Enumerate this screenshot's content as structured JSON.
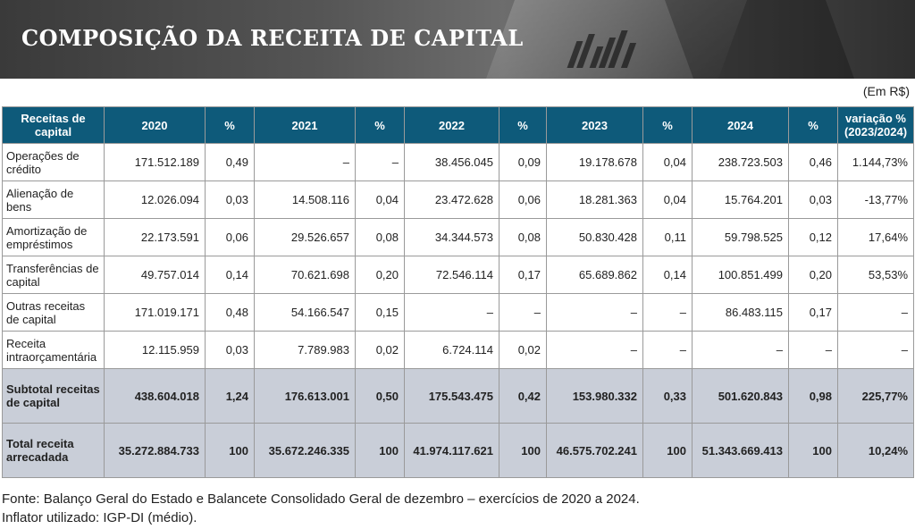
{
  "title": "COMPOSIÇÃO DA RECEITA DE CAPITAL",
  "unit": "(Em R$)",
  "headers": [
    "Receitas de capital",
    "2020",
    "%",
    "2021",
    "%",
    "2022",
    "%",
    "2023",
    "%",
    "2024",
    "%",
    "variação % (2023/2024)"
  ],
  "rows": [
    {
      "label": "Operações de crédito",
      "values": [
        "171.512.189",
        "0,49",
        "–",
        "–",
        "38.456.045",
        "0,09",
        "19.178.678",
        "0,04",
        "238.723.503",
        "0,46",
        "1.144,73%"
      ]
    },
    {
      "label": "Alienação de bens",
      "values": [
        "12.026.094",
        "0,03",
        "14.508.116",
        "0,04",
        "23.472.628",
        "0,06",
        "18.281.363",
        "0,04",
        "15.764.201",
        "0,03",
        "-13,77%"
      ]
    },
    {
      "label": "Amortização de empréstimos",
      "values": [
        "22.173.591",
        "0,06",
        "29.526.657",
        "0,08",
        "34.344.573",
        "0,08",
        "50.830.428",
        "0,11",
        "59.798.525",
        "0,12",
        "17,64%"
      ]
    },
    {
      "label": "Transferências de capital",
      "values": [
        "49.757.014",
        "0,14",
        "70.621.698",
        "0,20",
        "72.546.114",
        "0,17",
        "65.689.862",
        "0,14",
        "100.851.499",
        "0,20",
        "53,53%"
      ]
    },
    {
      "label": "Outras receitas de capital",
      "values": [
        "171.019.171",
        "0,48",
        "54.166.547",
        "0,15",
        "–",
        "–",
        "–",
        "–",
        "86.483.115",
        "0,17",
        "–"
      ]
    },
    {
      "label": "Receita intraorçamentária",
      "values": [
        "12.115.959",
        "0,03",
        "7.789.983",
        "0,02",
        "6.724.114",
        "0,02",
        "–",
        "–",
        "–",
        "–",
        "–"
      ]
    }
  ],
  "subtotal": {
    "label": "Subtotal receitas de capital",
    "values": [
      "438.604.018",
      "1,24",
      "176.613.001",
      "0,50",
      "175.543.475",
      "0,42",
      "153.980.332",
      "0,33",
      "501.620.843",
      "0,98",
      "225,77%"
    ]
  },
  "total": {
    "label": "Total receita arrecadada",
    "values": [
      "35.272.884.733",
      "100",
      "35.672.246.335",
      "100",
      "41.974.117.621",
      "100",
      "46.575.702.241",
      "100",
      "51.343.669.413",
      "100",
      "10,24%"
    ]
  },
  "source_line1": "Fonte: Balanço Geral do Estado e Balancete Consolidado Geral de dezembro – exercícios de 2020 a 2024.",
  "source_line2": "Inflator utilizado: IGP-DI (médio)."
}
